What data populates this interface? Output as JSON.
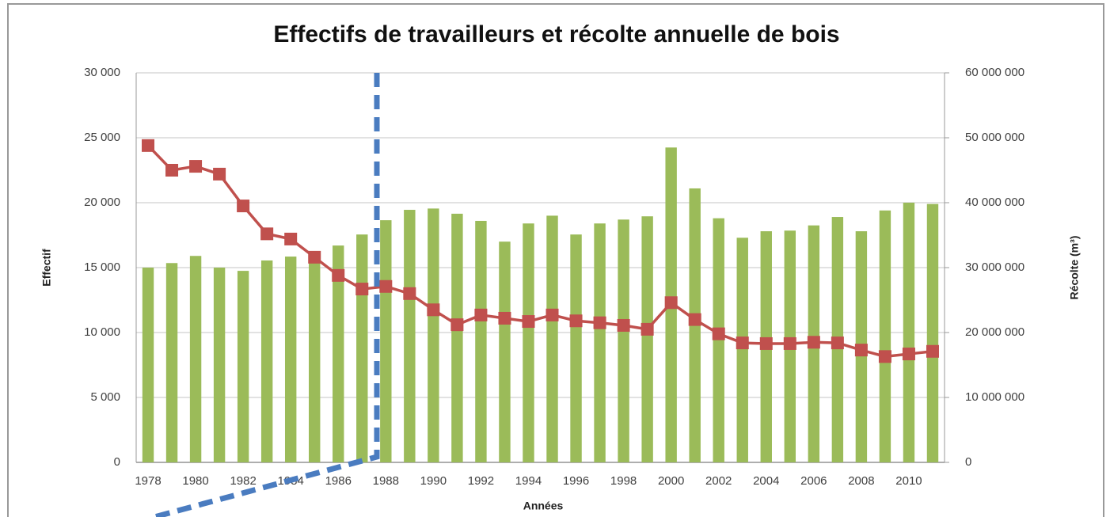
{
  "chart_data": {
    "type": "bar",
    "title": "Effectifs  de travailleurs et récolte annuelle de bois",
    "x_label": "Années",
    "y_label": "Effectif",
    "y2_label": "Récolte (m³)",
    "categories": [
      "1978",
      null,
      "1980",
      null,
      "1982",
      null,
      "1984",
      null,
      "1986",
      null,
      "1988",
      null,
      "1990",
      null,
      "1992",
      null,
      "1994",
      null,
      "1996",
      null,
      "1998",
      null,
      "2000",
      null,
      "2002",
      null,
      "2004",
      null,
      "2006",
      null,
      "2008",
      null,
      "2010",
      null
    ],
    "series": [
      {
        "type": "bar",
        "axis": "y2",
        "color": "#9bbb59",
        "values": [
          30000000,
          30700000,
          31800000,
          30000000,
          29500000,
          31100000,
          31700000,
          32500000,
          33400000,
          35100000,
          37300000,
          38900000,
          39100000,
          38300000,
          37200000,
          34000000,
          36800000,
          38000000,
          35100000,
          36800000,
          37400000,
          37900000,
          48500000,
          42200000,
          37600000,
          34600000,
          35600000,
          35700000,
          36500000,
          37800000,
          35600000,
          38800000,
          40000000,
          39800000
        ]
      },
      {
        "type": "line",
        "color": "#c0504d",
        "values": [
          24400,
          22500,
          22800,
          22200,
          19750,
          17600,
          17200,
          15800,
          14400,
          13350,
          13550,
          13000,
          11750,
          10600,
          11350,
          11100,
          10850,
          11350,
          10900,
          10750,
          10550,
          10250,
          12300,
          11000,
          9900,
          9200,
          9150,
          9150,
          9250,
          9200,
          8650,
          8150,
          8350,
          8550
        ]
      }
    ],
    "ylim": [
      0,
      30000
    ],
    "yticks": [
      0,
      {
        "value": 5000,
        "label": "5 000"
      },
      {
        "value": 10000,
        "label": "10 000"
      },
      {
        "value": 15000,
        "label": "15 000"
      },
      {
        "value": 20000,
        "label": "20 000"
      },
      {
        "value": 25000,
        "label": "25 000"
      },
      {
        "value": 30000,
        "label": "30 000"
      }
    ],
    "y2lim": [
      0,
      60000000
    ],
    "y2ticks": [
      0,
      {
        "value": 10000000,
        "label": "10 000 000"
      },
      {
        "value": 20000000,
        "label": "20 000 000"
      },
      {
        "value": 30000000,
        "label": "30 000 000"
      },
      {
        "value": 40000000,
        "label": "40 000 000"
      },
      {
        "value": 50000000,
        "label": "50 000 000"
      },
      {
        "value": 60000000,
        "label": "60 000 000"
      }
    ],
    "grid": true
  }
}
